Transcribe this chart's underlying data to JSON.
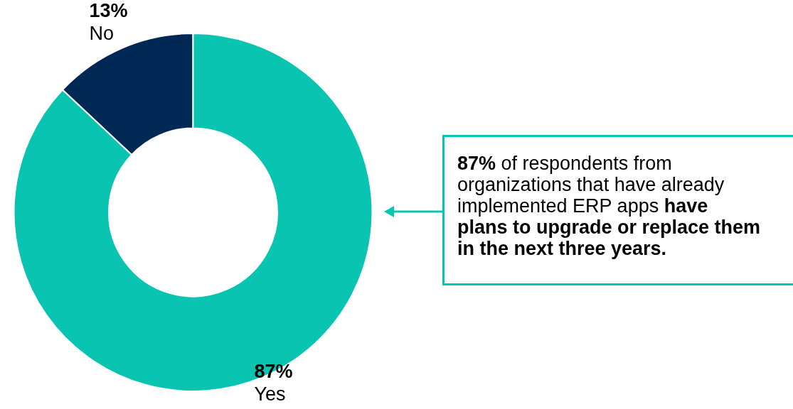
{
  "chart_data": {
    "type": "donut",
    "categories": [
      "No",
      "Yes"
    ],
    "values": [
      13,
      87
    ],
    "colors": [
      "#002855",
      "#08c4b1"
    ],
    "value_labels": [
      "13%",
      "87%"
    ],
    "legend": false,
    "annotations": [
      "87%",
      " of respondents from organizations that have already implemented ERP apps ",
      "have plans to upgrade or replace them in the next three years."
    ]
  }
}
